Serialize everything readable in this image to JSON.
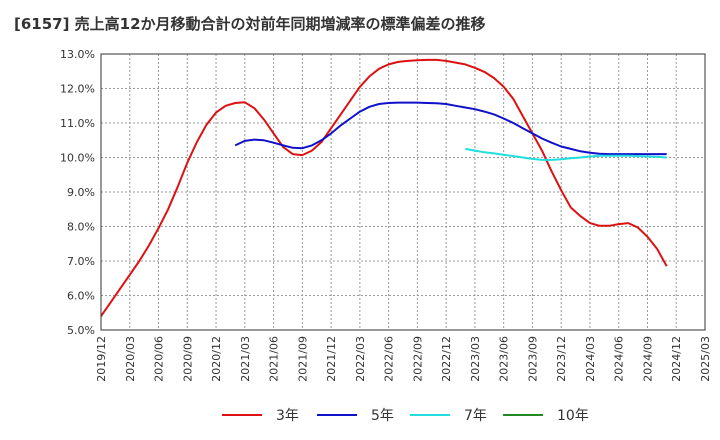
{
  "chart_data": {
    "type": "line",
    "title": "[6157]  売上高12か月移動合計の対前年同期増減率の標準偏差の推移",
    "xlabel": "",
    "ylabel": "",
    "ylim": [
      5.0,
      13.0
    ],
    "grid": true,
    "legend_position": "bottom",
    "yticks": [
      "5.0%",
      "6.0%",
      "7.0%",
      "8.0%",
      "9.0%",
      "10.0%",
      "11.0%",
      "12.0%",
      "13.0%"
    ],
    "xticks": [
      "2019/12",
      "2020/03",
      "2020/06",
      "2020/09",
      "2020/12",
      "2021/03",
      "2021/06",
      "2021/09",
      "2021/12",
      "2022/03",
      "2022/06",
      "2022/09",
      "2022/12",
      "2023/03",
      "2023/06",
      "2023/09",
      "2023/12",
      "2024/03",
      "2024/06",
      "2024/09",
      "2024/12",
      "2025/03"
    ],
    "series": [
      {
        "name": "3年",
        "color": "#dd1111",
        "points": [
          [
            "2019/12",
            5.4
          ],
          [
            "2020/01",
            5.8
          ],
          [
            "2020/02",
            6.2
          ],
          [
            "2020/03",
            6.6
          ],
          [
            "2020/04",
            7.0
          ],
          [
            "2020/05",
            7.45
          ],
          [
            "2020/06",
            7.95
          ],
          [
            "2020/07",
            8.5
          ],
          [
            "2020/08",
            9.15
          ],
          [
            "2020/09",
            9.85
          ],
          [
            "2020/10",
            10.45
          ],
          [
            "2020/11",
            10.95
          ],
          [
            "2020/12",
            11.3
          ],
          [
            "2021/01",
            11.5
          ],
          [
            "2021/02",
            11.58
          ],
          [
            "2021/03",
            11.6
          ],
          [
            "2021/04",
            11.43
          ],
          [
            "2021/05",
            11.1
          ],
          [
            "2021/06",
            10.7
          ],
          [
            "2021/07",
            10.3
          ],
          [
            "2021/08",
            10.1
          ],
          [
            "2021/09",
            10.07
          ],
          [
            "2021/10",
            10.2
          ],
          [
            "2021/11",
            10.45
          ],
          [
            "2021/12",
            10.85
          ],
          [
            "2022/01",
            11.25
          ],
          [
            "2022/02",
            11.65
          ],
          [
            "2022/03",
            12.05
          ],
          [
            "2022/04",
            12.35
          ],
          [
            "2022/05",
            12.57
          ],
          [
            "2022/06",
            12.7
          ],
          [
            "2022/07",
            12.77
          ],
          [
            "2022/08",
            12.8
          ],
          [
            "2022/09",
            12.82
          ],
          [
            "2022/10",
            12.83
          ],
          [
            "2022/11",
            12.83
          ],
          [
            "2022/12",
            12.8
          ],
          [
            "2023/01",
            12.75
          ],
          [
            "2023/02",
            12.7
          ],
          [
            "2023/03",
            12.6
          ],
          [
            "2023/04",
            12.48
          ],
          [
            "2023/05",
            12.3
          ],
          [
            "2023/06",
            12.05
          ],
          [
            "2023/07",
            11.7
          ],
          [
            "2023/08",
            11.2
          ],
          [
            "2023/09",
            10.7
          ],
          [
            "2023/10",
            10.2
          ],
          [
            "2023/11",
            9.6
          ],
          [
            "2023/12",
            9.05
          ],
          [
            "2024/01",
            8.55
          ],
          [
            "2024/02",
            8.3
          ],
          [
            "2024/03",
            8.1
          ],
          [
            "2024/04",
            8.02
          ],
          [
            "2024/05",
            8.02
          ],
          [
            "2024/06",
            8.07
          ],
          [
            "2024/07",
            8.1
          ],
          [
            "2024/08",
            7.97
          ],
          [
            "2024/09",
            7.7
          ],
          [
            "2024/10",
            7.35
          ],
          [
            "2024/11",
            6.85
          ]
        ]
      },
      {
        "name": "5年",
        "color": "#1111cc",
        "points": [
          [
            "2021/02",
            10.35
          ],
          [
            "2021/03",
            10.48
          ],
          [
            "2021/04",
            10.52
          ],
          [
            "2021/05",
            10.5
          ],
          [
            "2021/06",
            10.43
          ],
          [
            "2021/07",
            10.35
          ],
          [
            "2021/08",
            10.28
          ],
          [
            "2021/09",
            10.27
          ],
          [
            "2021/10",
            10.35
          ],
          [
            "2021/11",
            10.5
          ],
          [
            "2021/12",
            10.7
          ],
          [
            "2022/01",
            10.93
          ],
          [
            "2022/02",
            11.13
          ],
          [
            "2022/03",
            11.33
          ],
          [
            "2022/04",
            11.47
          ],
          [
            "2022/05",
            11.55
          ],
          [
            "2022/06",
            11.58
          ],
          [
            "2022/07",
            11.59
          ],
          [
            "2022/08",
            11.59
          ],
          [
            "2022/09",
            11.59
          ],
          [
            "2022/10",
            11.58
          ],
          [
            "2022/11",
            11.57
          ],
          [
            "2022/12",
            11.55
          ],
          [
            "2023/01",
            11.5
          ],
          [
            "2023/02",
            11.45
          ],
          [
            "2023/03",
            11.4
          ],
          [
            "2023/04",
            11.33
          ],
          [
            "2023/05",
            11.25
          ],
          [
            "2023/06",
            11.13
          ],
          [
            "2023/07",
            11.0
          ],
          [
            "2023/08",
            10.85
          ],
          [
            "2023/09",
            10.7
          ],
          [
            "2023/10",
            10.55
          ],
          [
            "2023/11",
            10.43
          ],
          [
            "2023/12",
            10.32
          ],
          [
            "2024/01",
            10.25
          ],
          [
            "2024/02",
            10.18
          ],
          [
            "2024/03",
            10.14
          ],
          [
            "2024/04",
            10.11
          ],
          [
            "2024/05",
            10.1
          ],
          [
            "2024/06",
            10.1
          ],
          [
            "2024/07",
            10.1
          ],
          [
            "2024/08",
            10.1
          ],
          [
            "2024/09",
            10.1
          ],
          [
            "2024/10",
            10.1
          ],
          [
            "2024/11",
            10.1
          ]
        ]
      },
      {
        "name": "7年",
        "color": "#22dddd",
        "points": [
          [
            "2023/02",
            10.25
          ],
          [
            "2023/03",
            10.2
          ],
          [
            "2023/04",
            10.15
          ],
          [
            "2023/05",
            10.12
          ],
          [
            "2023/06",
            10.08
          ],
          [
            "2023/07",
            10.04
          ],
          [
            "2023/08",
            10.0
          ],
          [
            "2023/09",
            9.96
          ],
          [
            "2023/10",
            9.93
          ],
          [
            "2023/11",
            9.93
          ],
          [
            "2023/12",
            9.95
          ],
          [
            "2024/01",
            9.98
          ],
          [
            "2024/02",
            10.0
          ],
          [
            "2024/03",
            10.03
          ],
          [
            "2024/04",
            10.05
          ],
          [
            "2024/05",
            10.05
          ],
          [
            "2024/06",
            10.05
          ],
          [
            "2024/07",
            10.05
          ],
          [
            "2024/08",
            10.04
          ],
          [
            "2024/09",
            10.03
          ],
          [
            "2024/10",
            10.02
          ],
          [
            "2024/11",
            10.0
          ]
        ]
      },
      {
        "name": "10年",
        "color": "#228822",
        "points": []
      }
    ]
  }
}
